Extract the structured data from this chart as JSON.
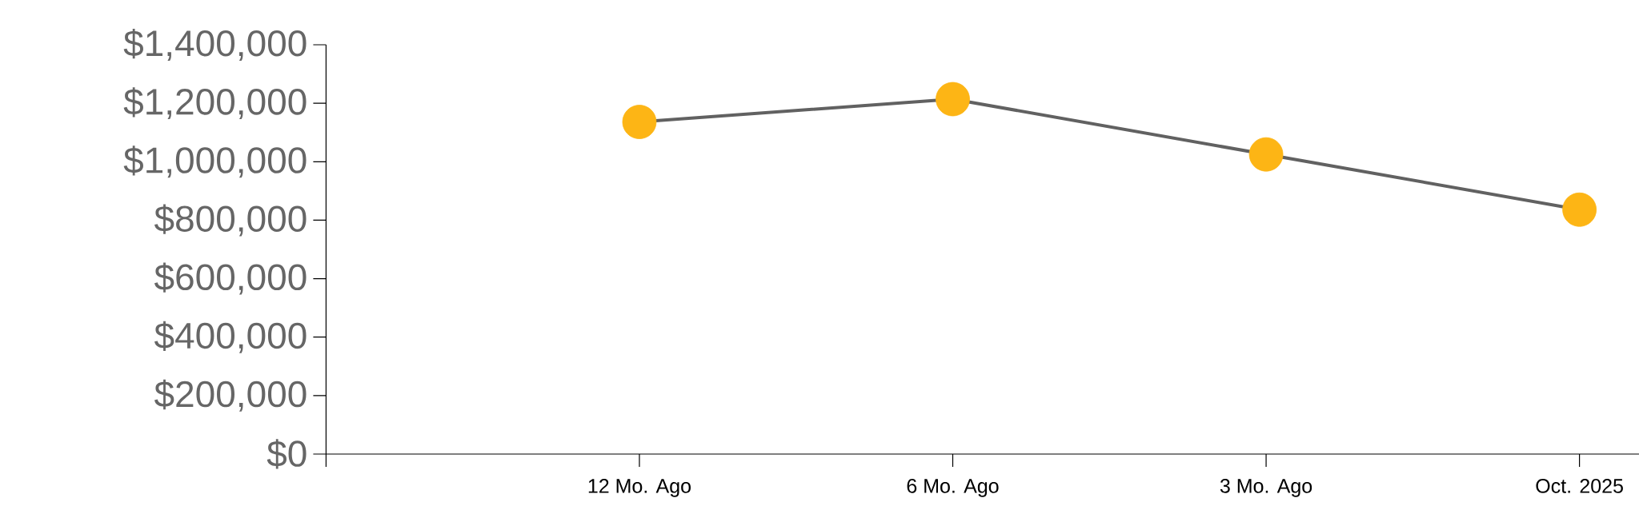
{
  "chart_data": {
    "type": "line",
    "categories": [
      null,
      "12 Mo. Ago",
      "6 Mo. Ago",
      "3 Mo. Ago",
      "Oct. 2025"
    ],
    "series": [
      {
        "color": "#616161",
        "colors": [
          null,
          "#fdb515",
          "#fdb515",
          "#fdb515",
          "#fdb515"
        ],
        "values": [
          null,
          1136000,
          1214000,
          1025000,
          836000
        ]
      }
    ],
    "ylim": [
      0,
      1400000
    ],
    "yticks": [
      {
        "value": 0,
        "label": "$0"
      },
      {
        "value": 200000,
        "label": "$200,000"
      },
      {
        "value": 400000,
        "label": "$400,000"
      },
      {
        "value": 600000,
        "label": "$600,000"
      },
      {
        "value": 800000,
        "label": "$800,000"
      },
      {
        "value": 1000000,
        "label": "$1,000,000"
      },
      {
        "value": 1200000,
        "label": "$1,200,000"
      },
      {
        "value": 1400000,
        "label": "$1,400,000"
      }
    ],
    "marker": "circle",
    "grid": false
  }
}
